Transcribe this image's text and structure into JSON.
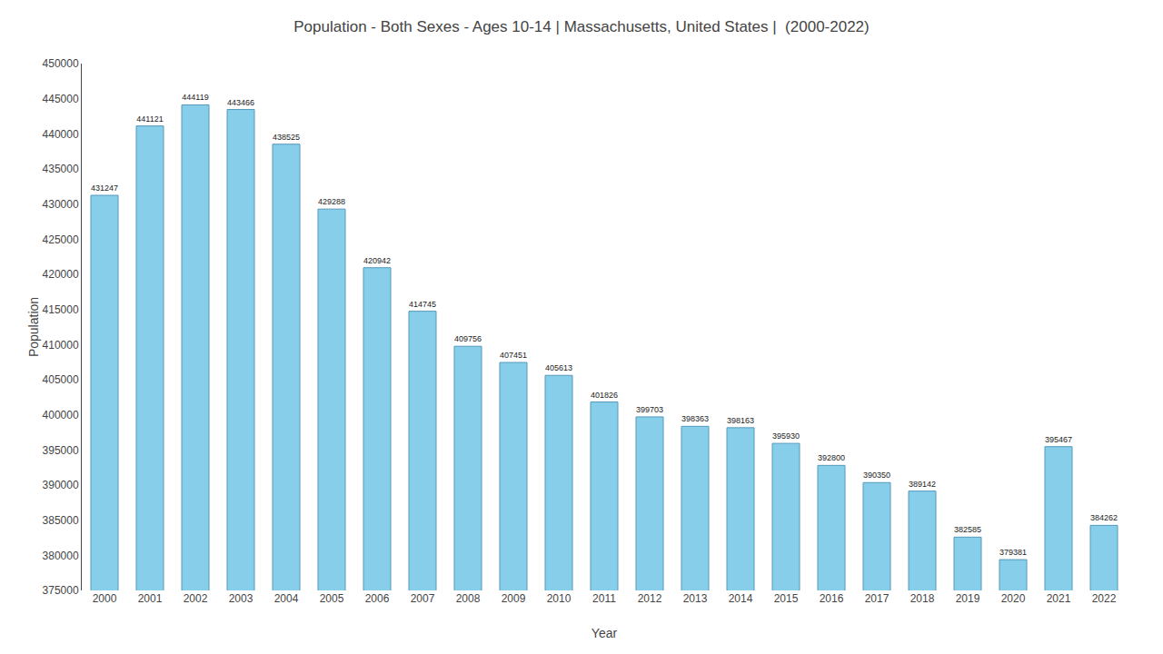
{
  "chart_data": {
    "type": "bar",
    "title": "Population - Both Sexes - Ages 10-14 | Massachusetts, United States |  (2000-2022)",
    "x_label": "Year",
    "y_label": "Population",
    "categories": [
      "2000",
      "2001",
      "2002",
      "2003",
      "2004",
      "2005",
      "2006",
      "2007",
      "2008",
      "2009",
      "2010",
      "2011",
      "2012",
      "2013",
      "2014",
      "2015",
      "2016",
      "2017",
      "2018",
      "2019",
      "2020",
      "2021",
      "2022"
    ],
    "values": [
      431247,
      441121,
      444119,
      443466,
      438525,
      429288,
      420942,
      414745,
      409756,
      407451,
      405613,
      401826,
      399703,
      398363,
      398163,
      395930,
      392800,
      390350,
      389142,
      382585,
      379381,
      395467,
      384262
    ],
    "color": "#87CEEB",
    "ylim": [
      375000,
      450000
    ],
    "yticks": [
      375000,
      380000,
      385000,
      390000,
      395000,
      400000,
      405000,
      410000,
      415000,
      420000,
      425000,
      430000,
      435000,
      440000,
      445000,
      450000
    ],
    "grid": false,
    "data_labels": true
  }
}
